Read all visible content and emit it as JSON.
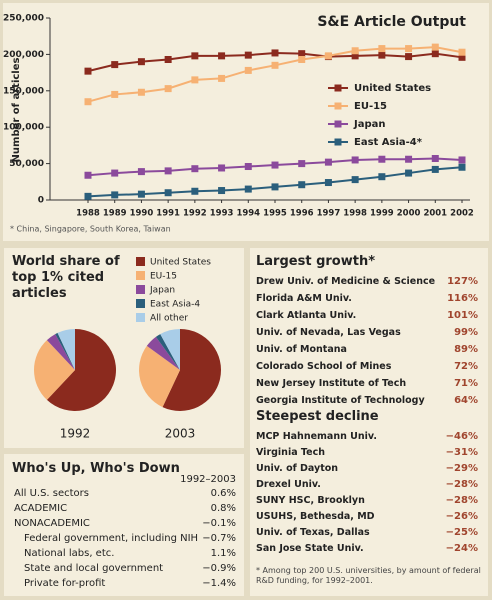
{
  "chart_data": [
    {
      "type": "line",
      "title": "S&E Article Output",
      "y_label": "Number of articles",
      "footnote": "* China, Singapore, South Korea, Taiwan",
      "categories": [
        "1988",
        "1989",
        "1990",
        "1991",
        "1992",
        "1993",
        "1994",
        "1995",
        "1996",
        "1997",
        "1998",
        "1999",
        "2000",
        "2001",
        "2002"
      ],
      "ylim": [
        0,
        250000
      ],
      "yticks": [
        0,
        {
          "value": 50000,
          "label": "50,000"
        },
        {
          "value": 100000,
          "label": "100,000"
        },
        {
          "value": 150000,
          "label": "150,000"
        },
        {
          "value": 200000,
          "label": "200,000"
        },
        {
          "value": 250000,
          "label": "250,000"
        }
      ],
      "legend": "right",
      "series": [
        {
          "name": "United States",
          "color": "#8b2a1e",
          "values": [
            177000,
            186000,
            190000,
            193000,
            198000,
            198000,
            199000,
            202000,
            201000,
            197000,
            198000,
            199000,
            197000,
            201000,
            196000
          ]
        },
        {
          "name": "EU-15",
          "color": "#f6b173",
          "values": [
            135000,
            145000,
            148000,
            153000,
            165000,
            167000,
            178000,
            185000,
            193000,
            198000,
            205000,
            208000,
            208000,
            210000,
            203000
          ]
        },
        {
          "name": "Japan",
          "color": "#8b4a9c",
          "values": [
            34000,
            37000,
            39000,
            40000,
            43000,
            44000,
            46000,
            48000,
            50000,
            52000,
            55000,
            56000,
            56000,
            57000,
            55000
          ]
        },
        {
          "name": "East Asia-4*",
          "color": "#2b5f7c",
          "values": [
            5000,
            7000,
            8000,
            10000,
            12000,
            13000,
            15000,
            18000,
            21000,
            24000,
            28000,
            32000,
            37000,
            42000,
            45000
          ]
        }
      ]
    },
    {
      "type": "pie",
      "title": "World share of top 1% cited articles",
      "categories": [
        "United States",
        "EU-15",
        "Japan",
        "East Asia-4",
        "All other"
      ],
      "colors": [
        "#8b2a1e",
        "#f6b173",
        "#8b4a9c",
        "#2b5f7c",
        "#a9cde8"
      ],
      "pies": [
        {
          "label": "1992",
          "values": [
            62,
            26,
            4,
            1,
            7
          ]
        },
        {
          "label": "2003",
          "values": [
            57,
            28,
            5,
            2,
            8
          ]
        }
      ]
    }
  ],
  "growth_table": {
    "title": "Largest growth*",
    "rows": [
      [
        "Drew Univ. of Medicine & Science",
        "127%"
      ],
      [
        "Florida A&M Univ.",
        "116%"
      ],
      [
        "Clark Atlanta Univ.",
        "101%"
      ],
      [
        "Univ. of Nevada, Las Vegas",
        "99%"
      ],
      [
        "Univ. of Montana",
        "89%"
      ],
      [
        "Colorado School of Mines",
        "72%"
      ],
      [
        "New Jersey Institute of Tech",
        "71%"
      ],
      [
        "Georgia Institute of Technology",
        "64%"
      ]
    ]
  },
  "decline_table": {
    "title": "Steepest decline",
    "rows": [
      [
        "MCP Hahnemann Univ.",
        "−46%"
      ],
      [
        "Virginia Tech",
        "−31%"
      ],
      [
        "Univ. of Dayton",
        "−29%"
      ],
      [
        "Drexel Univ.",
        "−28%"
      ],
      [
        "SUNY HSC, Brooklyn",
        "−28%"
      ],
      [
        "USUHS, Bethesda, MD",
        "−26%"
      ],
      [
        "Univ. of Texas, Dallas",
        "−25%"
      ],
      [
        "San Jose State Univ.",
        "−24%"
      ]
    ]
  },
  "table_footnote": "* Among top 200 U.S. universities, by amount of federal R&D funding, for 1992–2001.",
  "updown_table": {
    "title": "Who's Up, Who's Down",
    "column": "1992–2003",
    "rows": [
      [
        "All U.S. sectors",
        "0.6%"
      ],
      [
        "ACADEMIC",
        "0.8%"
      ],
      [
        "NONACADEMIC",
        "−0.1%"
      ]
    ],
    "sub_rows": [
      [
        "Federal government, including NIH",
        "−0.7%"
      ],
      [
        "National labs, etc.",
        "1.1%"
      ],
      [
        "State and local government",
        "−0.9%"
      ],
      [
        "Private for-profit",
        "−1.4%"
      ]
    ]
  }
}
